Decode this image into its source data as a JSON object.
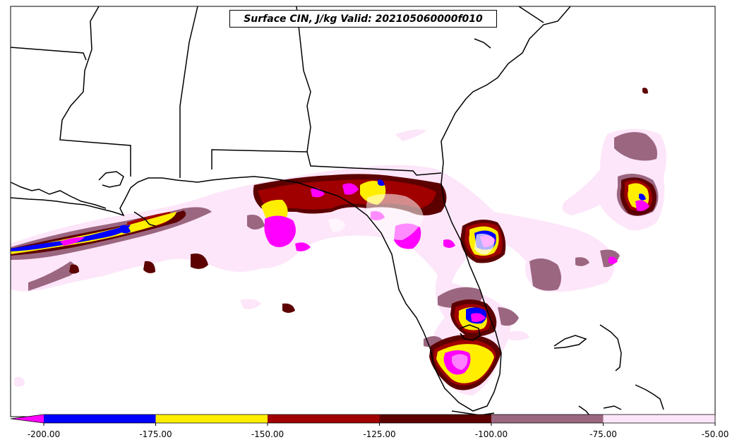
{
  "title": "Surface CIN, J/kg Valid: 202105060000f010",
  "colorbar": {
    "labels": [
      "-200.00",
      "-175.00",
      "-150.00",
      "-125.00",
      "-100.00",
      "-75.00",
      "-50.00"
    ],
    "colors": [
      "#0000ff",
      "#ffee00",
      "#a00000",
      "#5c0000",
      "#9b6680",
      "#fde6f9"
    ],
    "extend_color": "#ff00ff"
  },
  "field_colors": {
    "lt_-200": "#ff00ff",
    "-200_-175": "#0000ff",
    "-175_-150": "#ffee00",
    "-150_-125": "#a00000",
    "-125_-100": "#5c0000",
    "-100_-75": "#9b6680",
    "-75_-50": "#fde6f9"
  }
}
